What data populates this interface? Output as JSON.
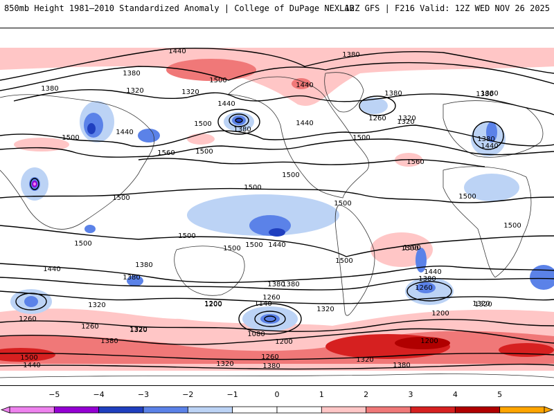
{
  "header": {
    "title_left": "850mb Height 1981–2010 Standardized Anomaly | College of DuPage NEXLAB",
    "title_right": "12Z GFS | F216 Valid: 12Z WED NOV 26 2025"
  },
  "colors": {
    "neg5": "#ee82ee",
    "neg4": "#9400d3",
    "neg3": "#1f3fbf",
    "neg2": "#5b82e8",
    "neg1": "#bcd3f5",
    "pos1": "#ffc6c6",
    "pos2": "#f07878",
    "pos3": "#d62020",
    "pos4": "#b00000",
    "pos5": "#ffa500"
  },
  "contour_labels": [
    "1440",
    "1380",
    "1500",
    "1320",
    "1380",
    "1500",
    "1440",
    "1500",
    "1440",
    "1440",
    "1320",
    "1380",
    "1500",
    "1560",
    "1380",
    "1380",
    "1440",
    "1500",
    "1380",
    "1320",
    "1260",
    "1500",
    "1560",
    "1440",
    "1380",
    "1500",
    "1500",
    "1500",
    "1500",
    "1500",
    "1500",
    "1500",
    "1440",
    "1380",
    "1500",
    "1500",
    "1500",
    "1500",
    "1440",
    "1380",
    "1380",
    "1320",
    "1260",
    "1200",
    "1140",
    "1260",
    "1320",
    "1200",
    "1080",
    "1200",
    "1320",
    "1260",
    "1380",
    "1320",
    "1500",
    "1440",
    "1380",
    "1320",
    "1260",
    "1200",
    "1500",
    "1440",
    "1320",
    "1320",
    "1380",
    "1200",
    "1260",
    "1380",
    "1380",
    "1320",
    "1320",
    "1380"
  ],
  "colorbar": {
    "labels": [
      "−5",
      "−4",
      "−3",
      "−2",
      "−1",
      "0",
      "1",
      "2",
      "3",
      "4",
      "5"
    ]
  }
}
